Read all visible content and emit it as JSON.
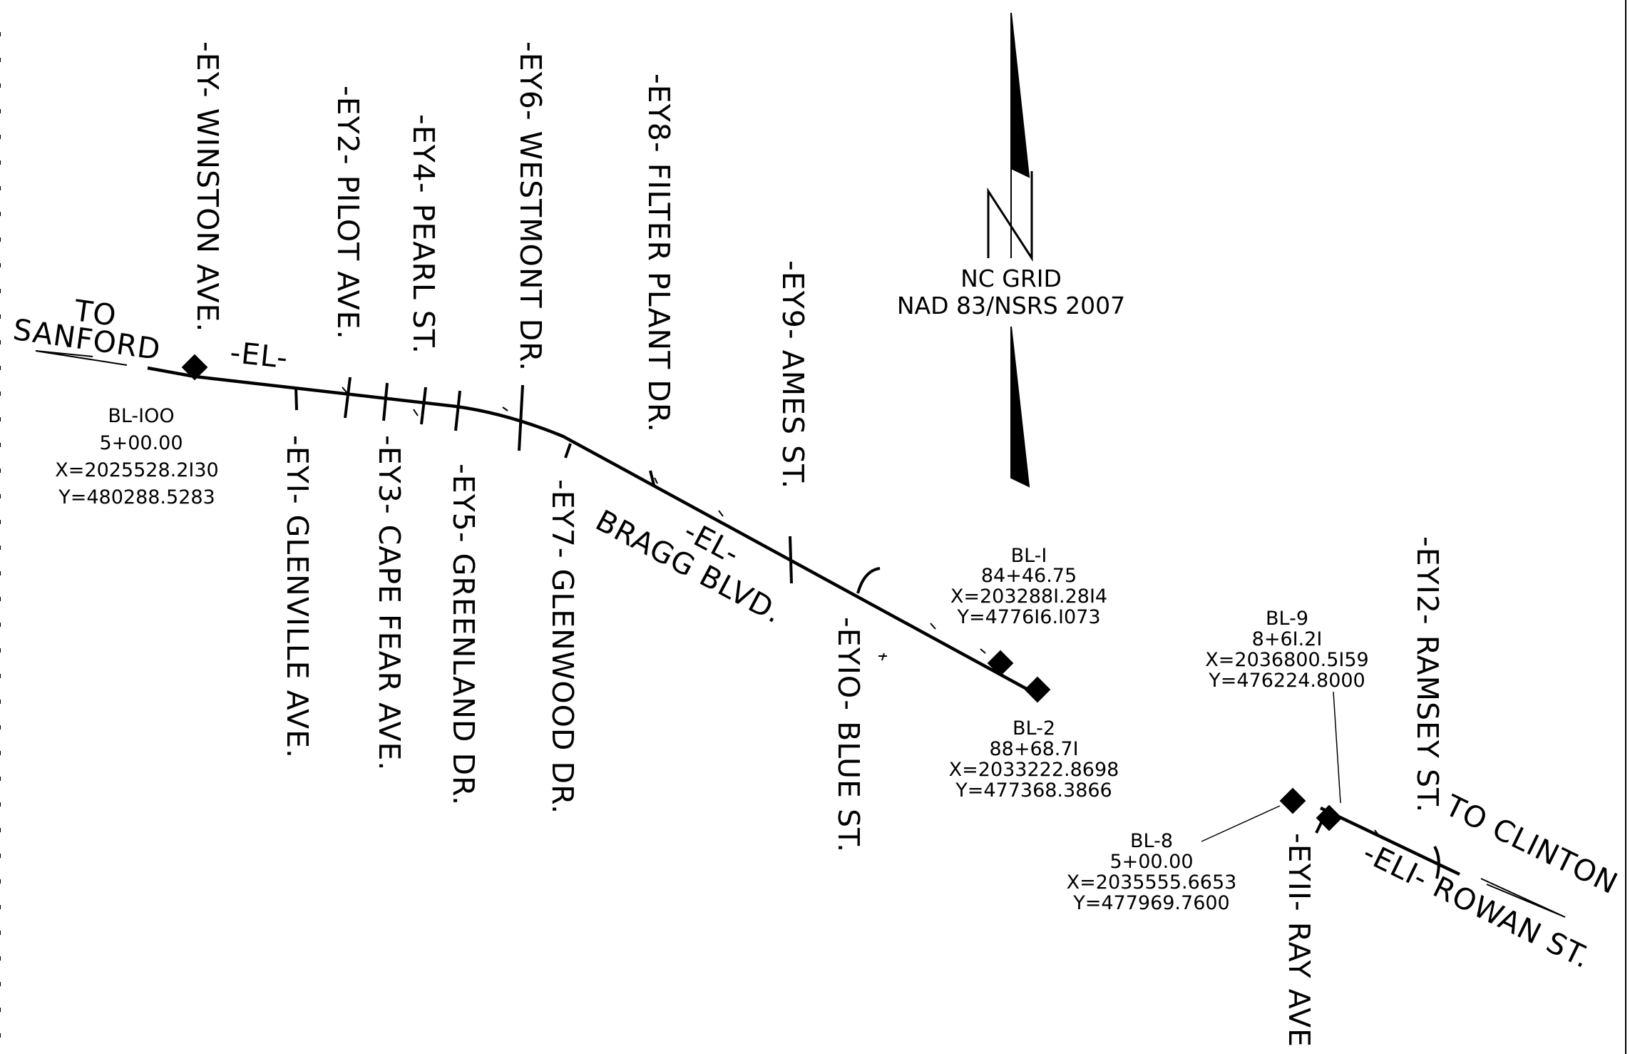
{
  "colors": {
    "ink": "#000000",
    "paper": "#ffffff"
  },
  "north_arrow": {
    "letter": "N",
    "grid_line1": "NC GRID",
    "grid_line2": "NAD 83/NSRS 2007",
    "icon": "north-arrow-icon"
  },
  "directions": {
    "to_sanford_1": "TO",
    "to_sanford_2": "SANFORD",
    "to_clinton": "TO CLINTON"
  },
  "alignments": {
    "el_west": "-EL-",
    "el_mid": "-EL-",
    "bragg": "BRAGG BLVD.",
    "eli": "-ELI- ROWAN ST."
  },
  "streets": {
    "ey": "-EY- WINSTON AVE.",
    "ey1": "-EYI- GLENVILLE AVE.",
    "ey2": "-EY2- PILOT AVE.",
    "ey3": "-EY3- CAPE FEAR AVE.",
    "ey4": "-EY4- PEARL ST.",
    "ey5": "-EY5- GREENLAND DR.",
    "ey6": "-EY6- WESTMONT DR.",
    "ey7": "-EY7- GLENWOOD DR.",
    "ey8": "-EY8- FILTER PLANT DR.",
    "ey9": "-EY9- AMES ST.",
    "ey10": "-EYIO- BLUE ST.",
    "ey11": "-EYII- RAY AVE",
    "ey12": "-EYI2- RAMSEY ST."
  },
  "baselines": {
    "bl100": {
      "name": "BL-IOO",
      "station": "5+00.00",
      "x": "X=2025528.2I30",
      "y": "Y=480288.5283"
    },
    "bl1": {
      "name": "BL-I",
      "station": "84+46.75",
      "x": "X=203288I.28I4",
      "y": "Y=4776I6.I073"
    },
    "bl2": {
      "name": "BL-2",
      "station": "88+68.7I",
      "x": "X=2033222.8698",
      "y": "Y=477368.3866"
    },
    "bl8": {
      "name": "BL-8",
      "station": "5+00.00",
      "x": "X=2035555.6653",
      "y": "Y=477969.7600"
    },
    "bl9": {
      "name": "BL-9",
      "station": "8+6I.2I",
      "x": "X=2036800.5I59",
      "y": "Y=476224.8000"
    }
  }
}
